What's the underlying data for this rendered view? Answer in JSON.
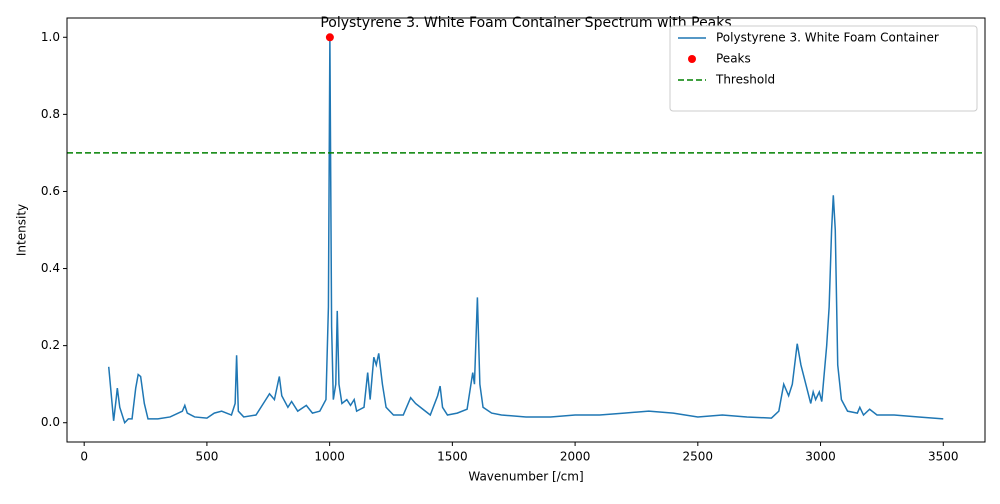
{
  "chart_data": {
    "type": "line",
    "title": "Polystyrene 3. White Foam Container Spectrum with Peaks",
    "xlabel": "Wavenumber [/cm]",
    "ylabel": "Intensity",
    "xlim": [
      -70,
      3670
    ],
    "ylim": [
      -0.05,
      1.05
    ],
    "xticks": [
      0,
      500,
      1000,
      1500,
      2000,
      2500,
      3000,
      3500
    ],
    "yticks": [
      {
        "value": 0,
        "label": "0.0"
      },
      0.2,
      0.4,
      0.6,
      0.8,
      {
        "value": 1,
        "label": "1.0"
      }
    ],
    "legend": "upper right",
    "series": [
      {
        "name": "Polystyrene 3. White Foam Container",
        "color": "#1f77b4",
        "x": [
          100,
          120,
          130,
          135,
          145,
          165,
          180,
          195,
          210,
          220,
          230,
          245,
          260,
          300,
          350,
          400,
          410,
          420,
          450,
          500,
          530,
          560,
          600,
          615,
          621,
          628,
          650,
          700,
          740,
          755,
          775,
          795,
          805,
          830,
          845,
          870,
          905,
          930,
          960,
          985,
          995,
          1001,
          1008,
          1015,
          1025,
          1031,
          1038,
          1050,
          1070,
          1085,
          1100,
          1110,
          1140,
          1155,
          1165,
          1180,
          1190,
          1200,
          1215,
          1230,
          1260,
          1300,
          1330,
          1350,
          1380,
          1410,
          1440,
          1450,
          1460,
          1480,
          1520,
          1560,
          1583,
          1590,
          1602,
          1612,
          1625,
          1660,
          1700,
          1800,
          1900,
          2000,
          2100,
          2200,
          2300,
          2400,
          2500,
          2600,
          2700,
          2800,
          2830,
          2850,
          2870,
          2885,
          2905,
          2920,
          2940,
          2960,
          2970,
          2980,
          2995,
          3005,
          3025,
          3035,
          3045,
          3052,
          3060,
          3070,
          3085,
          3110,
          3150,
          3160,
          3175,
          3200,
          3230,
          3300,
          3400,
          3500
        ],
        "values": [
          0.145,
          0.005,
          0.06,
          0.09,
          0.04,
          0.0,
          0.01,
          0.01,
          0.09,
          0.125,
          0.12,
          0.05,
          0.01,
          0.01,
          0.015,
          0.03,
          0.045,
          0.025,
          0.015,
          0.012,
          0.025,
          0.03,
          0.02,
          0.05,
          0.175,
          0.03,
          0.015,
          0.02,
          0.06,
          0.075,
          0.06,
          0.12,
          0.07,
          0.04,
          0.055,
          0.03,
          0.045,
          0.025,
          0.03,
          0.06,
          0.3,
          1.0,
          0.25,
          0.06,
          0.1,
          0.29,
          0.1,
          0.05,
          0.06,
          0.045,
          0.06,
          0.03,
          0.04,
          0.13,
          0.06,
          0.17,
          0.15,
          0.18,
          0.1,
          0.04,
          0.02,
          0.02,
          0.065,
          0.05,
          0.035,
          0.02,
          0.07,
          0.095,
          0.04,
          0.02,
          0.025,
          0.035,
          0.13,
          0.1,
          0.325,
          0.1,
          0.04,
          0.025,
          0.02,
          0.015,
          0.015,
          0.02,
          0.02,
          0.025,
          0.03,
          0.025,
          0.015,
          0.02,
          0.015,
          0.012,
          0.03,
          0.1,
          0.07,
          0.1,
          0.205,
          0.15,
          0.1,
          0.05,
          0.08,
          0.06,
          0.08,
          0.055,
          0.2,
          0.3,
          0.5,
          0.59,
          0.5,
          0.15,
          0.06,
          0.03,
          0.025,
          0.04,
          0.02,
          0.035,
          0.02,
          0.02,
          0.015,
          0.01
        ]
      }
    ],
    "peaks": {
      "name": "Peaks",
      "color": "#ff0000",
      "x": [
        1001
      ],
      "values": [
        1.0
      ]
    },
    "threshold": {
      "name": "Threshold",
      "color": "#008000",
      "value": 0.7
    }
  }
}
